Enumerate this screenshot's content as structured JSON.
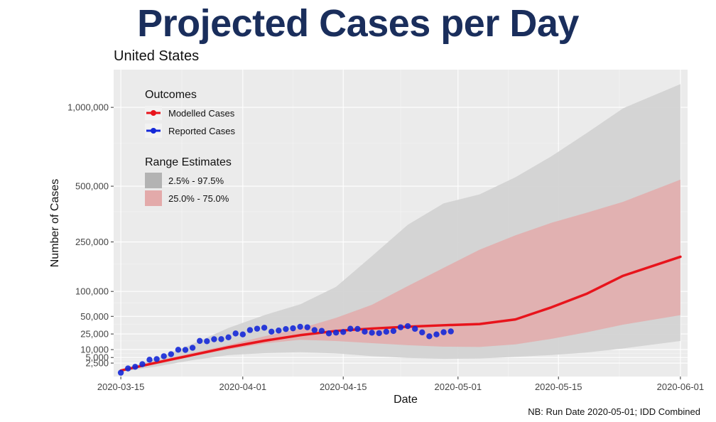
{
  "header": {
    "title": "Projected Cases per Day",
    "subtitle": "United States",
    "footnote": "NB: Run Date 2020-05-01; IDD Combined"
  },
  "colors": {
    "title": "#1a2e5c",
    "modelled": "#e8141c",
    "reported": "#1428d8",
    "band_outer": "#d3d3d3",
    "band_inner": "#e3aaaa",
    "panel": "#ebebeb"
  },
  "chart_data": {
    "type": "line",
    "xlabel": "Date",
    "ylabel": "Number of Cases",
    "x_scale": "date",
    "y_scale": "square root",
    "xlim": [
      "2020-03-14",
      "2020-06-02"
    ],
    "ylim": [
      0,
      1300000
    ],
    "x_ticks": [
      "2020-03-15",
      "2020-04-01",
      "2020-04-15",
      "2020-05-01",
      "2020-05-15",
      "2020-06-01"
    ],
    "y_ticks": [
      2500,
      5000,
      10000,
      25000,
      50000,
      100000,
      250000,
      500000,
      1000000
    ],
    "y_tick_labels": [
      "2,500",
      "5,000",
      "10,000",
      "25,000",
      "50,000",
      "100,000",
      "250,000",
      "500,000",
      "1,000,000"
    ],
    "grid": true,
    "legend_placement": "top-left",
    "legend_outcomes_title": "Outcomes",
    "legend_range_title": "Range Estimates",
    "series": [
      {
        "name": "Modelled Cases",
        "kind": "line",
        "x": [
          "2020-03-15",
          "2020-03-20",
          "2020-03-25",
          "2020-03-30",
          "2020-04-04",
          "2020-04-09",
          "2020-04-14",
          "2020-04-19",
          "2020-04-24",
          "2020-04-29",
          "2020-05-04",
          "2020-05-09",
          "2020-05-14",
          "2020-05-19",
          "2020-05-24",
          "2020-06-01"
        ],
        "values": [
          500,
          2700,
          6400,
          11800,
          17700,
          23600,
          28700,
          31800,
          34300,
          36300,
          38000,
          45000,
          66000,
          95000,
          140000,
          198000
        ]
      },
      {
        "name": "Reported Cases",
        "kind": "points",
        "x": [
          "2020-03-15",
          "2020-03-16",
          "2020-03-17",
          "2020-03-18",
          "2020-03-19",
          "2020-03-20",
          "2020-03-21",
          "2020-03-22",
          "2020-03-23",
          "2020-03-24",
          "2020-03-25",
          "2020-03-26",
          "2020-03-27",
          "2020-03-28",
          "2020-03-29",
          "2020-03-30",
          "2020-03-31",
          "2020-04-01",
          "2020-04-02",
          "2020-04-03",
          "2020-04-04",
          "2020-04-05",
          "2020-04-06",
          "2020-04-07",
          "2020-04-08",
          "2020-04-09",
          "2020-04-10",
          "2020-04-11",
          "2020-04-12",
          "2020-04-13",
          "2020-04-14",
          "2020-04-15",
          "2020-04-16",
          "2020-04-17",
          "2020-04-18",
          "2020-04-19",
          "2020-04-20",
          "2020-04-21",
          "2020-04-22",
          "2020-04-23",
          "2020-04-24",
          "2020-04-25",
          "2020-04-26",
          "2020-04-27",
          "2020-04-28",
          "2020-04-29",
          "2020-04-30"
        ],
        "values": [
          200,
          900,
          1300,
          2100,
          3900,
          4200,
          5700,
          6900,
          9900,
          9800,
          11400,
          17500,
          17200,
          19200,
          19300,
          21200,
          25600,
          24500,
          29800,
          31600,
          32900,
          27800,
          29200,
          31100,
          32100,
          34200,
          33500,
          29800,
          28800,
          25700,
          26600,
          27400,
          31500,
          31300,
          27800,
          26500,
          26000,
          27700,
          28600,
          33500,
          35100,
          31400,
          26900,
          22400,
          24500,
          27100,
          28100
        ]
      }
    ],
    "range_estimates": [
      {
        "name": "2.5% - 97.5%",
        "x": [
          "2020-03-15",
          "2020-03-20",
          "2020-03-25",
          "2020-03-30",
          "2020-04-04",
          "2020-04-09",
          "2020-04-14",
          "2020-04-19",
          "2020-04-24",
          "2020-04-29",
          "2020-05-04",
          "2020-05-09",
          "2020-05-14",
          "2020-05-19",
          "2020-05-24",
          "2020-06-01"
        ],
        "lower": [
          300,
          1400,
          3700,
          6300,
          7600,
          8200,
          7400,
          5700,
          4800,
          4300,
          4500,
          5300,
          6400,
          8000,
          10900,
          17400
        ],
        "upper": [
          700,
          4400,
          14600,
          32600,
          52000,
          72000,
          111000,
          200000,
          318000,
          414000,
          458000,
          548000,
          669000,
          820000,
          993000,
          1180000
        ]
      },
      {
        "name": "25.0% - 75.0%",
        "x": [
          "2020-03-15",
          "2020-03-20",
          "2020-03-25",
          "2020-03-30",
          "2020-04-04",
          "2020-04-09",
          "2020-04-14",
          "2020-04-19",
          "2020-04-24",
          "2020-04-29",
          "2020-05-04",
          "2020-05-09",
          "2020-05-14",
          "2020-05-19",
          "2020-05-24",
          "2020-06-01"
        ],
        "lower": [
          450,
          2100,
          5600,
          10100,
          15100,
          18700,
          17400,
          15400,
          13600,
          12300,
          12100,
          14300,
          19600,
          27100,
          37100,
          52000
        ],
        "upper": [
          550,
          3300,
          7700,
          13700,
          22300,
          31900,
          47600,
          71000,
          113000,
          163000,
          222000,
          275000,
          326000,
          371000,
          421000,
          535000
        ]
      }
    ]
  }
}
